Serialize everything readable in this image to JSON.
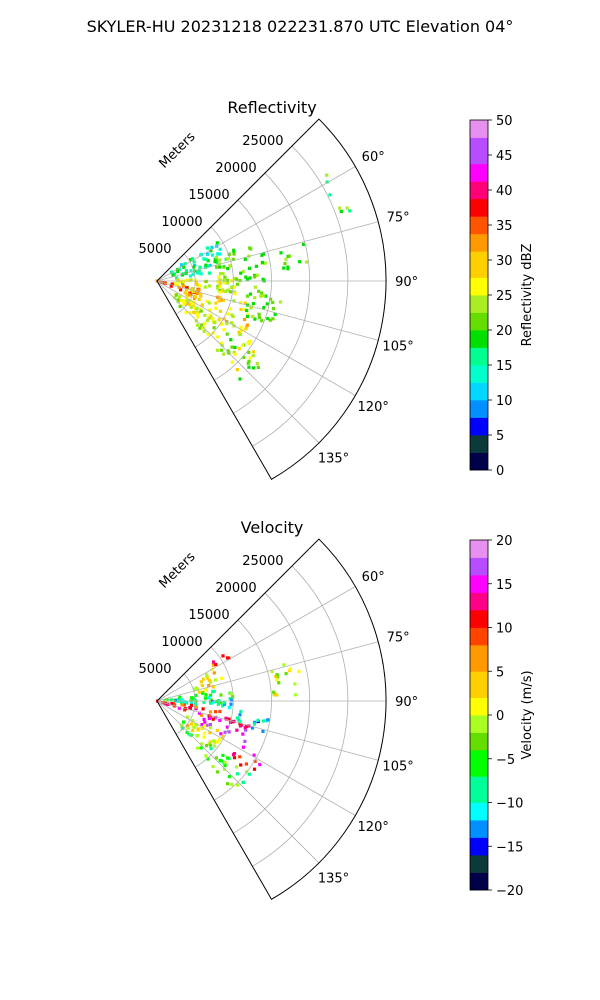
{
  "figure_title": "SKYLER-HU  20231218  022231.870 UTC Elevation 04°",
  "chart_data": [
    {
      "type": "polar-sector (radar PPI)",
      "title": "Reflectivity",
      "theta_ticks": [
        "60°",
        "75°",
        "90°",
        "105°",
        "120°",
        "135°"
      ],
      "theta_values_deg": [
        60,
        75,
        90,
        105,
        120,
        135
      ],
      "theta_range_deg": [
        45,
        150
      ],
      "radial_label": "Meters",
      "radial_ticks": [
        "5000",
        "10000",
        "15000",
        "20000",
        "25000"
      ],
      "radial_values": [
        5000,
        10000,
        15000,
        20000,
        25000
      ],
      "rlim": [
        0,
        30000
      ],
      "grid": true,
      "colorbar": {
        "label": "Reflectivity dBZ",
        "range": [
          0,
          50
        ],
        "ticks": [
          "0",
          "5",
          "10",
          "15",
          "20",
          "25",
          "30",
          "35",
          "40",
          "45",
          "50"
        ]
      },
      "observed_regions": [
        {
          "az": [
            56,
            82
          ],
          "r": [
            2000,
            9500
          ],
          "value": 15
        },
        {
          "az": [
            58,
            70
          ],
          "r": [
            25000,
            27000
          ],
          "value": 20
        },
        {
          "az": [
            68,
            100
          ],
          "r": [
            8000,
            14500
          ],
          "value": 21
        },
        {
          "az": [
            75,
            85
          ],
          "r": [
            16000,
            20000
          ],
          "value": 20
        },
        {
          "az": [
            86,
            102
          ],
          "r": [
            2000,
            11000
          ],
          "value": 25
        },
        {
          "az": [
            100,
            112
          ],
          "r": [
            0,
            6000
          ],
          "value": 34
        },
        {
          "az": [
            104,
            126
          ],
          "r": [
            4000,
            13500
          ],
          "value": 28
        },
        {
          "az": [
            95,
            112
          ],
          "r": [
            12000,
            17000
          ],
          "value": 21
        },
        {
          "az": [
            120,
            138
          ],
          "r": [
            3000,
            16000
          ],
          "value": 25
        },
        {
          "az": [
            128,
            140
          ],
          "r": [
            12000,
            18000
          ],
          "value": 22
        }
      ]
    },
    {
      "type": "polar-sector (radar PPI)",
      "title": "Velocity",
      "theta_ticks": [
        "60°",
        "75°",
        "90°",
        "105°",
        "120°",
        "135°"
      ],
      "theta_values_deg": [
        60,
        75,
        90,
        105,
        120,
        135
      ],
      "theta_range_deg": [
        45,
        150
      ],
      "radial_label": "Meters",
      "radial_ticks": [
        "5000",
        "10000",
        "15000",
        "20000",
        "25000"
      ],
      "radial_values": [
        5000,
        10000,
        15000,
        20000,
        25000
      ],
      "rlim": [
        0,
        30000
      ],
      "grid": true,
      "colorbar": {
        "label": "Velocity (m/s)",
        "range": [
          -20,
          20
        ],
        "ticks": [
          "−20",
          "−15",
          "−10",
          "−5",
          "0",
          "5",
          "10",
          "15",
          "20"
        ]
      },
      "observed_regions": [
        {
          "az": [
            55,
            62
          ],
          "r": [
            8000,
            11000
          ],
          "value": 9
        },
        {
          "az": [
            60,
            80
          ],
          "r": [
            5000,
            9000
          ],
          "value": 2
        },
        {
          "az": [
            72,
            88
          ],
          "r": [
            15000,
            19000
          ],
          "value": 1
        },
        {
          "az": [
            80,
            92
          ],
          "r": [
            1000,
            10000
          ],
          "value": -5
        },
        {
          "az": [
            86,
            96
          ],
          "r": [
            2000,
            10000
          ],
          "value": -11
        },
        {
          "az": [
            96,
            108
          ],
          "r": [
            0,
            9000
          ],
          "value": 11
        },
        {
          "az": [
            104,
            118
          ],
          "r": [
            6000,
            13000
          ],
          "value": 14
        },
        {
          "az": [
            96,
            106
          ],
          "r": [
            10000,
            15000
          ],
          "value": -11
        },
        {
          "az": [
            115,
            130
          ],
          "r": [
            4000,
            10000
          ],
          "value": 2
        },
        {
          "az": [
            118,
            128
          ],
          "r": [
            12000,
            16000
          ],
          "value": 12
        },
        {
          "az": [
            128,
            140
          ],
          "r": [
            4000,
            16000
          ],
          "value": -4
        }
      ]
    }
  ]
}
